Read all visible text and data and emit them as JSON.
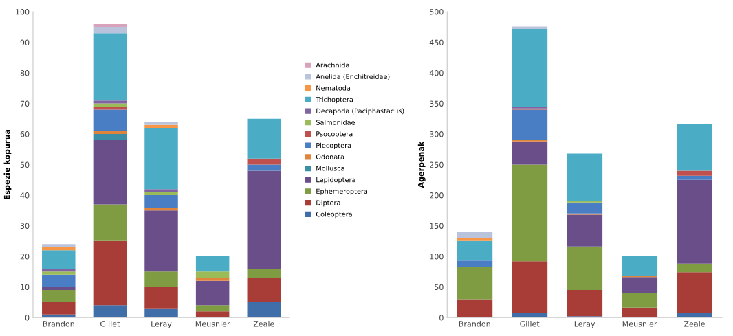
{
  "chart_data": [
    {
      "type": "bar",
      "stacked": true,
      "ylabel": "Espezie kopurua",
      "categories": [
        "Brandon",
        "Gillet",
        "Leray",
        "Meusnier",
        "Zeale"
      ],
      "ylim": [
        0,
        100
      ],
      "yticks": [
        0,
        10,
        20,
        30,
        40,
        50,
        60,
        70,
        80,
        90,
        100
      ],
      "grid": false,
      "legend": "right",
      "series": [
        {
          "name": "Coleoptera",
          "color": "#3f6ea8",
          "values": [
            1,
            4,
            3,
            0,
            5
          ]
        },
        {
          "name": "Diptera",
          "color": "#a83d38",
          "values": [
            4,
            21,
            7,
            2,
            8
          ]
        },
        {
          "name": "Ephemeroptera",
          "color": "#7f9c43",
          "values": [
            4,
            12,
            5,
            2,
            3
          ]
        },
        {
          "name": "Lepidoptera",
          "color": "#6a4e8a",
          "values": [
            1,
            21,
            20,
            8,
            32
          ]
        },
        {
          "name": "Mollusca",
          "color": "#3a8fa6",
          "values": [
            0,
            2,
            0,
            0,
            0
          ]
        },
        {
          "name": "Odonata",
          "color": "#e0843c",
          "values": [
            0,
            1,
            1,
            1,
            0
          ]
        },
        {
          "name": "Plecoptera",
          "color": "#4a7ec4",
          "values": [
            4,
            7,
            4,
            0,
            2
          ]
        },
        {
          "name": "Psocoptera",
          "color": "#c0504d",
          "values": [
            0,
            1,
            0,
            0,
            2
          ]
        },
        {
          "name": "Salmonidae",
          "color": "#9bbb59",
          "values": [
            1,
            1,
            1,
            2,
            0
          ]
        },
        {
          "name": "Decapoda (Paciphastacus)",
          "color": "#8064a2",
          "values": [
            1,
            1,
            1,
            0,
            0
          ]
        },
        {
          "name": "Trichoptera",
          "color": "#4bacc6",
          "values": [
            6,
            22,
            20,
            5,
            13
          ]
        },
        {
          "name": "Nematoda",
          "color": "#f79646",
          "values": [
            1,
            0,
            1,
            0,
            0
          ]
        },
        {
          "name": "Anelida (Enchitreidae)",
          "color": "#b9c4dc",
          "values": [
            1,
            2,
            1,
            0,
            0
          ]
        },
        {
          "name": "Arachnida",
          "color": "#d9a3bc",
          "values": [
            0,
            1,
            0,
            0,
            0
          ]
        }
      ]
    },
    {
      "type": "bar",
      "stacked": true,
      "ylabel": "Agerpenak",
      "categories": [
        "Brandon",
        "Gillet",
        "Leray",
        "Meusnier",
        "Zeale"
      ],
      "ylim": [
        0,
        500
      ],
      "yticks": [
        0,
        50,
        100,
        150,
        200,
        250,
        300,
        350,
        400,
        450,
        500
      ],
      "grid": false,
      "series": [
        {
          "color": "#3f6ea8",
          "values": [
            0,
            7,
            2,
            0,
            8
          ]
        },
        {
          "color": "#a83d38",
          "values": [
            30,
            85,
            43,
            16,
            66
          ]
        },
        {
          "color": "#7f9c43",
          "values": [
            53,
            158,
            71,
            24,
            14
          ]
        },
        {
          "color": "#6a4e8a",
          "values": [
            0,
            38,
            52,
            26,
            137
          ]
        },
        {
          "color": "#3a8fa6",
          "values": [
            0,
            0,
            0,
            0,
            0
          ]
        },
        {
          "color": "#e0843c",
          "values": [
            0,
            2,
            2,
            2,
            0
          ]
        },
        {
          "color": "#4a7ec4",
          "values": [
            10,
            50,
            18,
            0,
            7
          ]
        },
        {
          "color": "#c0504d",
          "values": [
            0,
            2,
            0,
            0,
            8
          ]
        },
        {
          "color": "#9bbb59",
          "values": [
            0,
            0,
            2,
            0,
            0
          ]
        },
        {
          "color": "#8064a2",
          "values": [
            0,
            2,
            0,
            0,
            0
          ]
        },
        {
          "color": "#4bacc6",
          "values": [
            32,
            128,
            78,
            33,
            76
          ]
        },
        {
          "color": "#f79646",
          "values": [
            5,
            0,
            0,
            0,
            0
          ]
        },
        {
          "color": "#b9c4dc",
          "values": [
            10,
            4,
            0,
            0,
            0
          ]
        },
        {
          "color": "#d9a3bc",
          "values": [
            0,
            0,
            0,
            0,
            0
          ]
        }
      ]
    }
  ]
}
